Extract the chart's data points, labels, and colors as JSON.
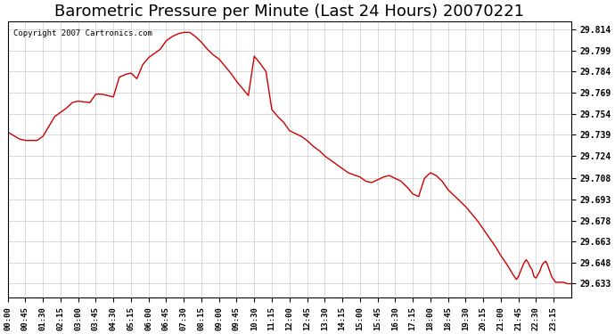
{
  "title": "Barometric Pressure per Minute (Last 24 Hours) 20070221",
  "copyright_text": "Copyright 2007 Cartronics.com",
  "line_color": "#cc0000",
  "background_color": "#ffffff",
  "grid_color": "#cccccc",
  "yticks": [
    29.633,
    29.648,
    29.663,
    29.678,
    29.693,
    29.708,
    29.724,
    29.739,
    29.754,
    29.769,
    29.784,
    29.799,
    29.814
  ],
  "ylim_low": 29.623,
  "ylim_high": 29.82,
  "xtick_labels": [
    "00:00",
    "00:45",
    "01:30",
    "02:15",
    "03:00",
    "03:45",
    "04:30",
    "05:15",
    "06:00",
    "06:45",
    "07:30",
    "08:15",
    "09:00",
    "09:45",
    "10:30",
    "11:15",
    "12:00",
    "12:45",
    "13:30",
    "14:15",
    "15:00",
    "15:45",
    "16:30",
    "17:15",
    "18:00",
    "18:45",
    "19:30",
    "20:15",
    "21:00",
    "21:45",
    "22:30",
    "23:15"
  ],
  "title_fontsize": 13,
  "ctrl_pts_x": [
    0,
    30,
    45,
    75,
    90,
    120,
    150,
    165,
    180,
    210,
    225,
    240,
    270,
    285,
    300,
    315,
    330,
    345,
    360,
    375,
    390,
    405,
    420,
    435,
    450,
    465,
    480,
    495,
    510,
    525,
    540,
    555,
    570,
    585,
    600,
    615,
    630,
    645,
    660,
    675,
    690,
    705,
    720,
    735,
    750,
    765,
    780,
    795,
    810,
    825,
    840,
    855,
    870,
    900,
    915,
    930,
    945,
    960,
    975,
    990,
    1005,
    1020,
    1035,
    1050,
    1065,
    1080,
    1095,
    1110,
    1125,
    1140,
    1155,
    1170,
    1185,
    1200,
    1215,
    1230,
    1245,
    1260,
    1275,
    1290,
    1300,
    1305,
    1315,
    1320,
    1325,
    1330,
    1335,
    1340,
    1345,
    1350,
    1360,
    1365,
    1370,
    1375,
    1380,
    1385,
    1390,
    1395,
    1400,
    1410,
    1420,
    1430,
    1440
  ],
  "ctrl_pts_y": [
    29.741,
    29.736,
    29.735,
    29.735,
    29.738,
    29.752,
    29.758,
    29.762,
    29.763,
    29.762,
    29.768,
    29.768,
    29.766,
    29.78,
    29.782,
    29.783,
    29.779,
    29.789,
    29.794,
    29.797,
    29.8,
    29.806,
    29.809,
    29.811,
    29.812,
    29.812,
    29.809,
    29.805,
    29.8,
    29.796,
    29.793,
    29.788,
    29.783,
    29.777,
    29.772,
    29.767,
    29.795,
    29.79,
    29.784,
    29.757,
    29.752,
    29.748,
    29.742,
    29.74,
    29.738,
    29.735,
    29.731,
    29.728,
    29.724,
    29.721,
    29.718,
    29.715,
    29.712,
    29.709,
    29.706,
    29.705,
    29.707,
    29.709,
    29.71,
    29.708,
    29.706,
    29.702,
    29.697,
    29.695,
    29.708,
    29.712,
    29.71,
    29.706,
    29.7,
    29.696,
    29.692,
    29.688,
    29.683,
    29.678,
    29.672,
    29.666,
    29.66,
    29.653,
    29.647,
    29.64,
    29.636,
    29.638,
    29.645,
    29.648,
    29.65,
    29.648,
    29.645,
    29.643,
    29.638,
    29.637,
    29.642,
    29.646,
    29.648,
    29.649,
    29.646,
    29.642,
    29.638,
    29.636,
    29.634,
    29.634,
    29.634,
    29.633,
    29.633
  ]
}
